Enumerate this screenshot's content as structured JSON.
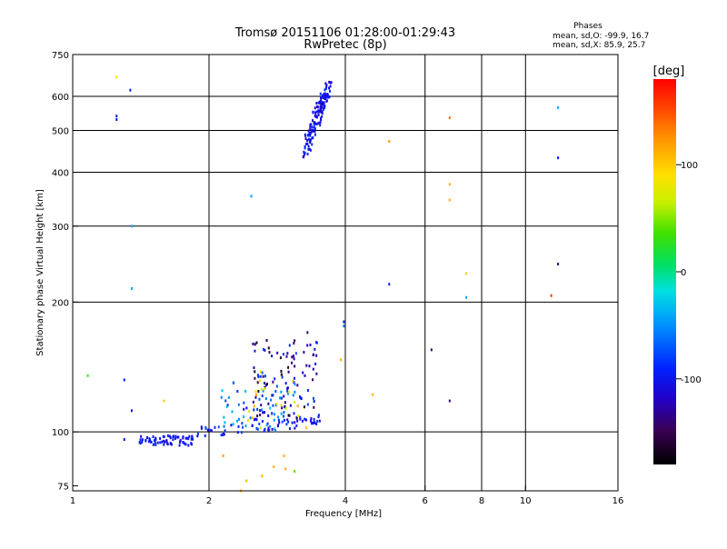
{
  "chart_data": {
    "type": "scatter",
    "title": "Tromsø 20151106 01:28:00-01:29:43",
    "subtitle": "RwPretec (8p)",
    "phases_info": {
      "heading": "Phases",
      "line_o": "mean, sd,O: -99.9, 16.7",
      "line_x": "mean, sd,X:  85.9, 25.7"
    },
    "xlabel": "Frequency [MHz]",
    "ylabel": "Stationary phase Virtual Height [km]",
    "x_scale": "log",
    "y_scale": "log",
    "xlim": [
      1,
      16
    ],
    "ylim": [
      73,
      750
    ],
    "x_ticks": [
      {
        "value": 1,
        "label": "1"
      },
      {
        "value": 2,
        "label": "2"
      },
      {
        "value": 4,
        "label": "4"
      },
      {
        "value": 6,
        "label": "6"
      },
      {
        "value": 8,
        "label": "8"
      },
      {
        "value": 10,
        "label": "10"
      },
      {
        "value": 16,
        "label": "16"
      }
    ],
    "y_ticks": [
      {
        "value": 75,
        "label": "75"
      },
      {
        "value": 100,
        "label": "100"
      },
      {
        "value": 200,
        "label": "200"
      },
      {
        "value": 300,
        "label": "300"
      },
      {
        "value": 400,
        "label": "400"
      },
      {
        "value": 500,
        "label": "500"
      },
      {
        "value": 600,
        "label": "600"
      },
      {
        "value": 750,
        "label": "750"
      }
    ],
    "x_grid": [
      2,
      4,
      6,
      8,
      10
    ],
    "y_grid": [
      100,
      200,
      300,
      400,
      500,
      600
    ],
    "grid": true,
    "colorbar": {
      "label": "[deg]",
      "range": [
        -180,
        180
      ],
      "ticks": [
        {
          "value": 100,
          "label": "100"
        },
        {
          "value": 0,
          "label": "0"
        },
        {
          "value": -100,
          "label": "-100"
        }
      ]
    },
    "series": [
      {
        "points": [
          [
            1.25,
            540,
            -100
          ],
          [
            1.25,
            530,
            -100
          ],
          [
            1.34,
            620,
            -100
          ],
          [
            1.25,
            665,
            90
          ],
          [
            1.35,
            300,
            -40
          ],
          [
            1.35,
            215,
            -40
          ],
          [
            1.08,
            135,
            30
          ],
          [
            1.3,
            132,
            -100
          ],
          [
            1.35,
            112,
            -100
          ],
          [
            1.59,
            118,
            100
          ],
          [
            1.3,
            96,
            -100
          ],
          [
            2.48,
            352,
            -40
          ],
          [
            5.0,
            220,
            -100
          ],
          [
            5.0,
            472,
            120
          ],
          [
            6.2,
            155,
            -140
          ],
          [
            6.8,
            535,
            140
          ],
          [
            6.8,
            375,
            110
          ],
          [
            6.8,
            345,
            110
          ],
          [
            6.8,
            118,
            -140
          ],
          [
            7.4,
            233,
            100
          ],
          [
            7.4,
            205,
            -40
          ],
          [
            11.8,
            565,
            -40
          ],
          [
            11.8,
            432,
            -100
          ],
          [
            11.8,
            245,
            -140
          ],
          [
            11.4,
            207,
            160
          ],
          [
            3.97,
            180,
            -100
          ],
          [
            3.97,
            176,
            -60
          ],
          [
            3.91,
            147,
            110
          ],
          [
            3.3,
            170,
            -140
          ],
          [
            4.6,
            122,
            110
          ],
          [
            2.15,
            88,
            120
          ],
          [
            2.42,
            77,
            110
          ],
          [
            2.62,
            79,
            110
          ],
          [
            2.78,
            83,
            110
          ],
          [
            2.95,
            82,
            110
          ],
          [
            3.09,
            81,
            40
          ],
          [
            2.93,
            88,
            110
          ],
          [
            2.35,
            73,
            110
          ]
        ]
      }
    ]
  }
}
